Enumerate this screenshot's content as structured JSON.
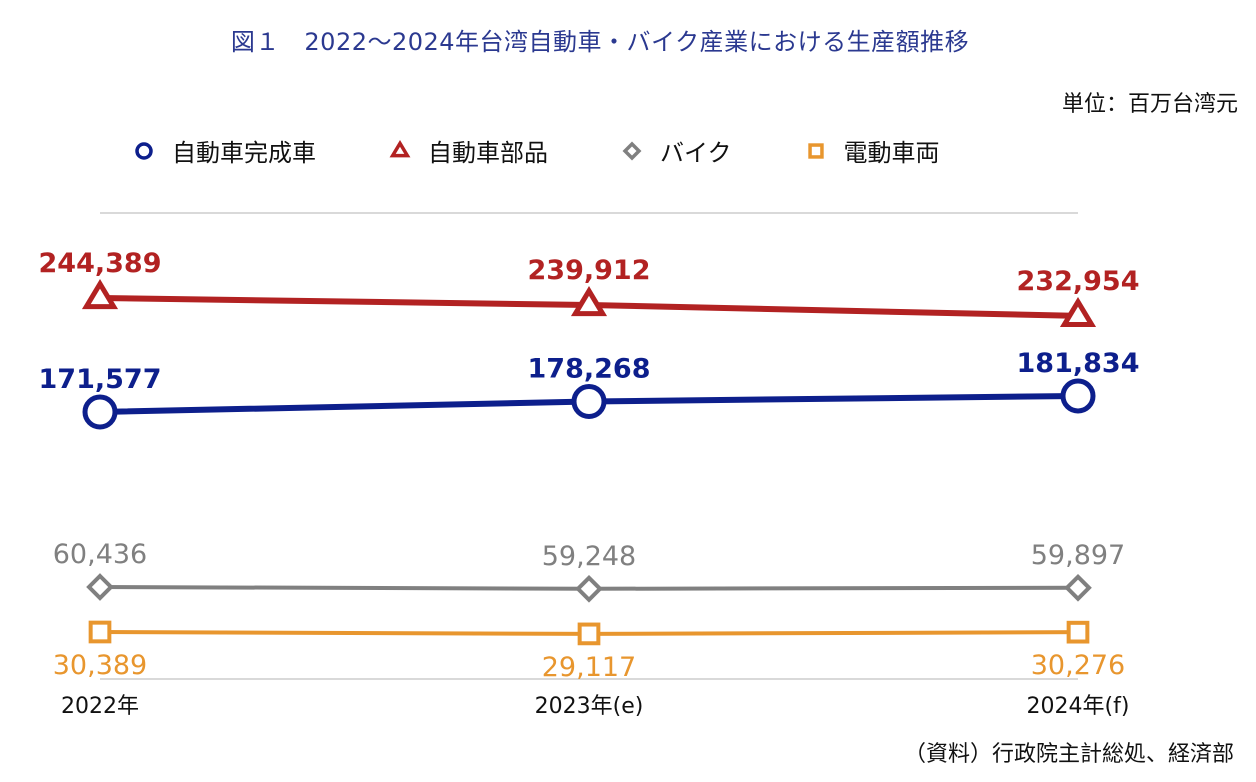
{
  "title": "図１　2022〜2024年台湾自動車・バイク産業における生産額推移",
  "unit": "単位：百万台湾元",
  "source": "（資料）行政院主計総処、経済部",
  "colors": {
    "cars": "#0d1f8c",
    "parts": "#b22222",
    "motorcycles": "#808080",
    "ev": "#e8962e"
  },
  "chart_data": {
    "type": "line",
    "categories": [
      "2022年",
      "2023年(e)",
      "2024年(f)"
    ],
    "series": [
      {
        "name": "自動車部品",
        "key": "parts",
        "marker": "triangle",
        "values": [
          244389,
          239912,
          232954
        ],
        "labels": [
          "244,389",
          "239,912",
          "232,954"
        ],
        "label_position": "above"
      },
      {
        "name": "自動車完成車",
        "key": "cars",
        "marker": "circle",
        "values": [
          171577,
          178268,
          181834
        ],
        "labels": [
          "171,577",
          "178,268",
          "181,834"
        ],
        "label_position": "above"
      },
      {
        "name": "バイク",
        "key": "motorcycles",
        "marker": "diamond",
        "values": [
          60436,
          59248,
          59897
        ],
        "labels": [
          "60,436",
          "59,248",
          "59,897"
        ],
        "label_position": "above"
      },
      {
        "name": "電動車両",
        "key": "ev",
        "marker": "square",
        "values": [
          30389,
          29117,
          30276
        ],
        "labels": [
          "30,389",
          "29,117",
          "30,276"
        ],
        "label_position": "below"
      }
    ],
    "legend_order": [
      "cars",
      "parts",
      "motorcycles",
      "ev"
    ],
    "legend_placement": "top-left",
    "grid": false
  }
}
